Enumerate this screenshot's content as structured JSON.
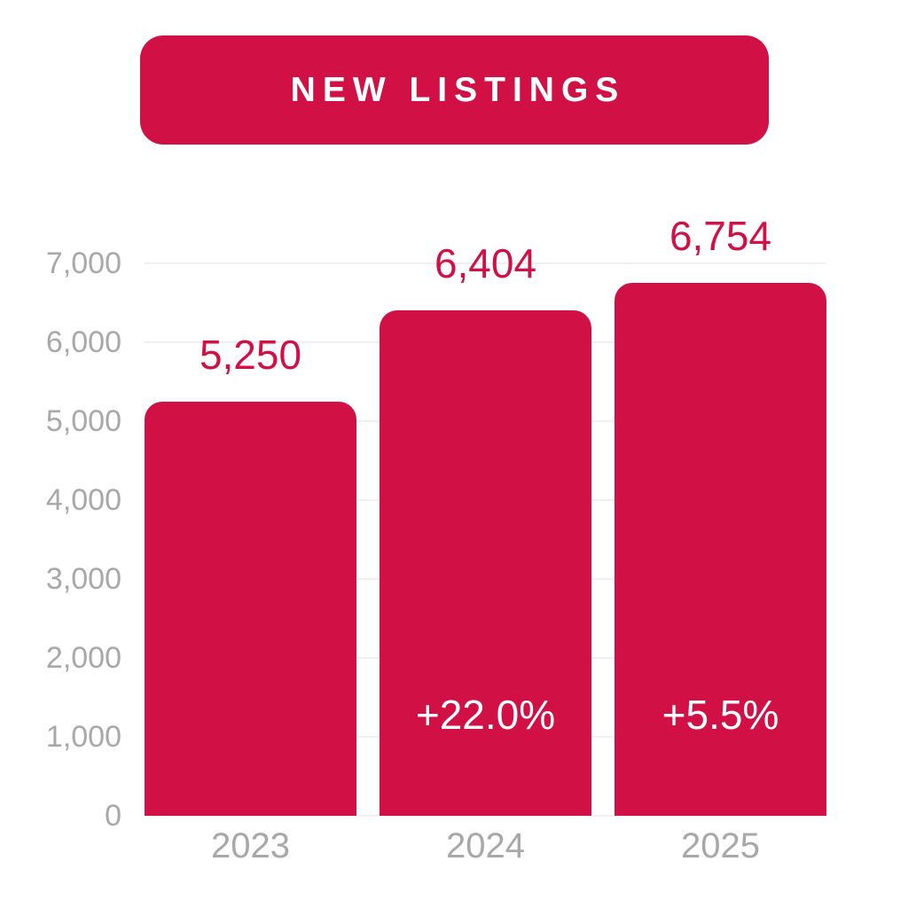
{
  "title": {
    "label": "NEW LISTINGS"
  },
  "colors": {
    "accent": "#D11146",
    "bar": "#D11146",
    "value_label_text": "#D11146",
    "on_bar_text": "#FFFFFF",
    "title_text": "#FFFFFF",
    "axis_text": "#A8A8A8",
    "gridline": "#F0F0F0",
    "background": "#FFFFFF"
  },
  "chart_data": {
    "type": "bar",
    "title": "NEW LISTINGS",
    "categories": [
      "2023",
      "2024",
      "2025"
    ],
    "values": [
      5250,
      6404,
      6754
    ],
    "value_labels": [
      "5,250",
      "6,404",
      "6,754"
    ],
    "growth_labels": [
      "",
      "+22.0%",
      "+5.5%"
    ],
    "ylim": [
      0,
      7000
    ],
    "ytick_interval": 1000,
    "ytick_labels": [
      "0",
      "1,000",
      "2,000",
      "3,000",
      "4,000",
      "5,000",
      "6,000",
      "7,000"
    ],
    "grid": "horizontal",
    "legend": "none",
    "xlabel": "",
    "ylabel": ""
  }
}
